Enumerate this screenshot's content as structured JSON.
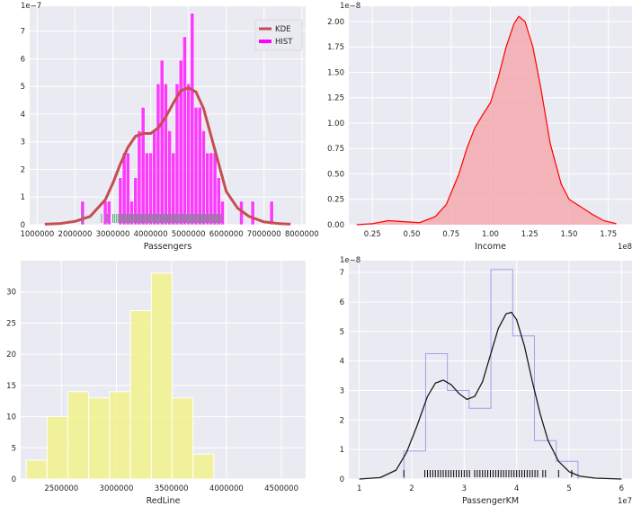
{
  "chart_data": [
    {
      "type": "histogram+kde",
      "xlabel": "Passengers",
      "x_ticks": [
        "1000000",
        "2000000",
        "3000000",
        "4000000",
        "5000000",
        "6000000",
        "7000000",
        "8000000"
      ],
      "x_tick_values": [
        1000000,
        2000000,
        3000000,
        4000000,
        5000000,
        6000000,
        7000000,
        8000000
      ],
      "xlim": [
        800000,
        8100000
      ],
      "y_ticks": [
        "0",
        "1",
        "2",
        "3",
        "4",
        "5",
        "6",
        "7"
      ],
      "ylim": [
        0,
        7.9
      ],
      "y_multiplier": "1e−7",
      "legend": {
        "position": "top-right",
        "entries": [
          "KDE",
          "HIST"
        ]
      },
      "colors": {
        "kde": "#c44e52",
        "hist": "#ff00ff",
        "rug": "#55a868"
      },
      "series": [
        {
          "name": "HIST",
          "kind": "histogram",
          "bin_start": 2150000,
          "bin_width": 100000,
          "values": [
            0.85,
            0,
            0,
            0,
            0,
            0,
            0.85,
            0.85,
            0,
            0,
            1.7,
            2.6,
            2.6,
            0.85,
            1.7,
            3.4,
            4.25,
            2.6,
            2.6,
            3.4,
            5.1,
            5.95,
            5.1,
            3.4,
            2.6,
            5.1,
            5.95,
            6.8,
            5.1,
            7.65,
            4.25,
            4.25,
            3.4,
            2.6,
            2.6,
            2.6,
            1.7,
            0.85,
            0,
            0,
            0,
            0,
            0.85,
            0,
            0,
            0.85,
            0,
            0,
            0,
            0,
            0.85
          ]
        },
        {
          "name": "KDE",
          "kind": "kde",
          "x": [
            1200000,
            1600000,
            2000000,
            2400000,
            2800000,
            3000000,
            3200000,
            3400000,
            3600000,
            3800000,
            4000000,
            4200000,
            4400000,
            4600000,
            4800000,
            5000000,
            5200000,
            5400000,
            5600000,
            5800000,
            6000000,
            6300000,
            6600000,
            7000000,
            7400000,
            7700000
          ],
          "y": [
            0.02,
            0.04,
            0.12,
            0.3,
            0.9,
            1.5,
            2.2,
            2.8,
            3.2,
            3.3,
            3.3,
            3.5,
            3.9,
            4.4,
            4.85,
            4.95,
            4.8,
            4.2,
            3.2,
            2.2,
            1.2,
            0.6,
            0.3,
            0.1,
            0.04,
            0.02
          ]
        },
        {
          "name": "rug",
          "kind": "rug",
          "x": [
            2200000,
            2700000,
            2850000,
            3000000,
            3050000,
            3100000,
            3150000,
            3200000,
            3250000,
            3300000,
            3350000,
            3400000,
            3450000,
            3500000,
            3550000,
            3600000,
            3650000,
            3700000,
            3750000,
            3800000,
            3850000,
            3900000,
            3950000,
            4000000,
            4050000,
            4100000,
            4150000,
            4200000,
            4250000,
            4300000,
            4350000,
            4400000,
            4450000,
            4500000,
            4550000,
            4600000,
            4650000,
            4700000,
            4750000,
            4800000,
            4850000,
            4900000,
            4950000,
            5000000,
            5050000,
            5100000,
            5150000,
            5200000,
            5250000,
            5300000,
            5350000,
            5400000,
            5450000,
            5500000,
            5550000,
            5600000,
            5650000,
            5700000,
            5750000,
            5800000,
            5850000
          ]
        }
      ]
    },
    {
      "type": "area",
      "xlabel": "Income",
      "x_ticks": [
        "0.25",
        "0.50",
        "0.75",
        "1.00",
        "1.25",
        "1.50",
        "1.75"
      ],
      "x_tick_values": [
        0.25,
        0.5,
        0.75,
        1.0,
        1.25,
        1.5,
        1.75
      ],
      "x_multiplier": "1e8",
      "xlim": [
        0.1,
        1.9
      ],
      "y_ticks": [
        "0.00",
        "0.25",
        "0.50",
        "0.75",
        "1.00",
        "1.25",
        "1.50",
        "1.75",
        "2.00"
      ],
      "y_tick_values": [
        0,
        0.25,
        0.5,
        0.75,
        1.0,
        1.25,
        1.5,
        1.75,
        2.0
      ],
      "ylim": [
        0,
        2.15
      ],
      "y_multiplier": "1e−8",
      "colors": {
        "line": "#ff0000",
        "fill": "#f4a6aa"
      },
      "series": [
        {
          "kind": "kde-shaded",
          "x": [
            0.15,
            0.25,
            0.35,
            0.45,
            0.55,
            0.65,
            0.72,
            0.8,
            0.85,
            0.9,
            0.95,
            1.0,
            1.05,
            1.1,
            1.15,
            1.18,
            1.22,
            1.27,
            1.32,
            1.38,
            1.45,
            1.5,
            1.55,
            1.6,
            1.65,
            1.72,
            1.8
          ],
          "y": [
            0.0,
            0.01,
            0.04,
            0.03,
            0.02,
            0.08,
            0.2,
            0.5,
            0.75,
            0.95,
            1.08,
            1.2,
            1.45,
            1.75,
            1.98,
            2.05,
            2.0,
            1.75,
            1.35,
            0.8,
            0.4,
            0.25,
            0.2,
            0.15,
            0.1,
            0.04,
            0.01
          ]
        }
      ]
    },
    {
      "type": "histogram",
      "xlabel": "RedLine",
      "x_ticks": [
        "2500000",
        "3000000",
        "3500000",
        "4000000",
        "4500000"
      ],
      "x_tick_values": [
        2500000,
        3000000,
        3500000,
        4000000,
        4500000
      ],
      "xlim": [
        2130000,
        4720000
      ],
      "y_ticks": [
        "0",
        "5",
        "10",
        "15",
        "20",
        "25",
        "30"
      ],
      "ylim": [
        0,
        35
      ],
      "colors": {
        "bar": "#f2f28c"
      },
      "series": [
        {
          "kind": "histogram",
          "bin_start": 2180000,
          "bin_width": 189500,
          "values": [
            3,
            10,
            14,
            13,
            14,
            27,
            33,
            13,
            4
          ]
        }
      ]
    },
    {
      "type": "histogram+kde",
      "xlabel": "PassengerKM",
      "x_ticks": [
        "1",
        "2",
        "3",
        "4",
        "5",
        "6"
      ],
      "x_tick_values": [
        1,
        2,
        3,
        4,
        5,
        6
      ],
      "x_multiplier": "1e7",
      "xlim": [
        0.8,
        6.2
      ],
      "y_ticks": [
        "0",
        "1",
        "2",
        "3",
        "4",
        "5",
        "6",
        "7"
      ],
      "ylim": [
        0,
        7.4
      ],
      "y_multiplier": "1e−8",
      "colors": {
        "kde": "#1a1a1a",
        "hist_edge": "#a0a0ee",
        "rug": "#000000"
      },
      "series": [
        {
          "kind": "step-histogram",
          "bin_start": 1.85,
          "bin_width": 0.415,
          "values": [
            0.95,
            4.25,
            3.0,
            2.4,
            7.1,
            4.85,
            1.3,
            0.6
          ]
        },
        {
          "kind": "kde",
          "x": [
            1.0,
            1.4,
            1.7,
            1.9,
            2.1,
            2.3,
            2.45,
            2.6,
            2.75,
            2.9,
            3.05,
            3.2,
            3.35,
            3.5,
            3.65,
            3.8,
            3.9,
            4.0,
            4.15,
            4.3,
            4.45,
            4.6,
            4.8,
            5.0,
            5.2,
            5.5,
            6.0
          ],
          "y": [
            0.0,
            0.05,
            0.3,
            0.9,
            1.8,
            2.8,
            3.25,
            3.35,
            3.2,
            2.9,
            2.7,
            2.8,
            3.3,
            4.2,
            5.1,
            5.6,
            5.65,
            5.4,
            4.5,
            3.3,
            2.2,
            1.3,
            0.6,
            0.25,
            0.1,
            0.03,
            0.0
          ]
        },
        {
          "kind": "rug",
          "x": [
            1.85,
            2.25,
            2.3,
            2.35,
            2.4,
            2.45,
            2.5,
            2.55,
            2.6,
            2.65,
            2.7,
            2.75,
            2.8,
            2.85,
            2.9,
            2.95,
            3.0,
            3.05,
            3.1,
            3.2,
            3.25,
            3.3,
            3.35,
            3.4,
            3.45,
            3.5,
            3.55,
            3.6,
            3.65,
            3.7,
            3.75,
            3.8,
            3.85,
            3.9,
            3.95,
            4.0,
            4.05,
            4.1,
            4.15,
            4.2,
            4.25,
            4.3,
            4.35,
            4.4,
            4.5,
            4.55,
            4.8,
            5.05
          ]
        }
      ]
    }
  ]
}
